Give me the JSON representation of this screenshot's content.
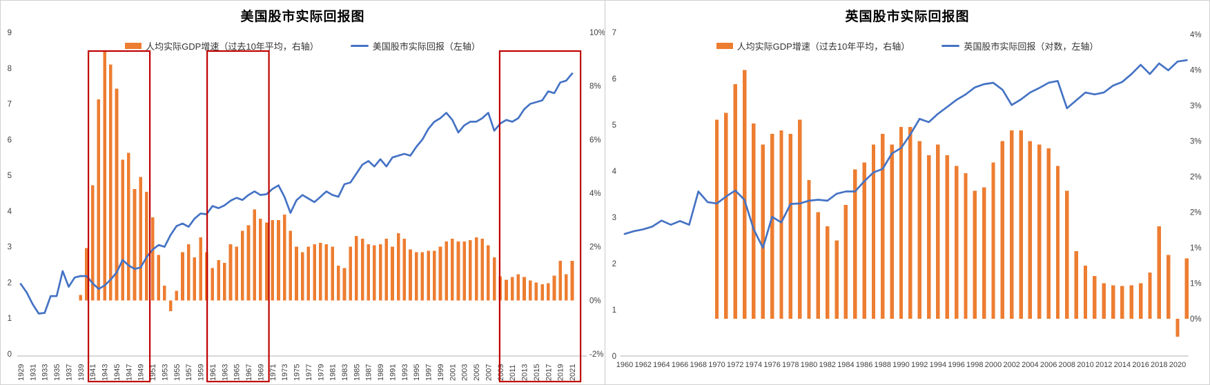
{
  "colors": {
    "bar": "#ED7D31",
    "line": "#4472C4",
    "highlight_box": "#C00000",
    "axis_text": "#404040",
    "axis_line": "#BFBFBF",
    "background": "#FFFFFF"
  },
  "charts": [
    {
      "id": "us",
      "title": "美国股市实际回报图",
      "legend": [
        {
          "series": "bars",
          "label": "人均实际GDP增速（过去10年平均，右轴）"
        },
        {
          "series": "line",
          "label": "美国股市实际回报（左轴）"
        }
      ],
      "chart_data": {
        "type": "bar",
        "subtype": "combo-bar-line",
        "left_axis": {
          "min": 0,
          "max": 9,
          "labels": [
            "0",
            "1",
            "2",
            "3",
            "4",
            "5",
            "6",
            "7",
            "8",
            "9"
          ],
          "series": "line"
        },
        "right_axis": {
          "min": -2,
          "max": 10,
          "labels": [
            "-2%",
            "0%",
            "2%",
            "4%",
            "6%",
            "8%",
            "10%"
          ],
          "values": [
            -2,
            0,
            2,
            4,
            6,
            8,
            10
          ],
          "series": "bars"
        },
        "x_axis": {
          "base_year": 1929,
          "tick_step": 2,
          "rotated_labels": true,
          "tick_labels": [
            "1929",
            "1931",
            "1933",
            "1935",
            "1937",
            "1939",
            "1941",
            "1943",
            "1945",
            "1947",
            "1949",
            "1951",
            "1953",
            "1955",
            "1957",
            "1959",
            "1961",
            "1963",
            "1965",
            "1967",
            "1969",
            "1971",
            "1973",
            "1975",
            "1977",
            "1979",
            "1981",
            "1983",
            "1985",
            "1987",
            "1989",
            "1991",
            "1993",
            "1995",
            "1997",
            "1999",
            "2001",
            "2003",
            "2005",
            "2007",
            "2009",
            "2011",
            "2013",
            "2015",
            "2017",
            "2019",
            "2021"
          ]
        },
        "bars": {
          "name": "人均实际GDP增速（过去10年平均，右轴）",
          "unit": "%",
          "start_year": 1939,
          "values": [
            0.2,
            1.95,
            4.3,
            7.5,
            9.3,
            8.8,
            7.9,
            5.25,
            5.5,
            4.15,
            4.6,
            4.05,
            3.1,
            1.7,
            0.55,
            -0.4,
            0.35,
            1.8,
            2.1,
            1.6,
            2.35,
            1.8,
            1.2,
            1.5,
            1.4,
            2.1,
            2.0,
            2.6,
            2.8,
            3.4,
            3.05,
            2.9,
            3.0,
            3.0,
            3.2,
            2.6,
            2.0,
            1.8,
            2.0,
            2.1,
            2.15,
            2.1,
            2.0,
            1.3,
            1.2,
            2.0,
            2.4,
            2.3,
            2.1,
            2.05,
            2.1,
            2.3,
            2.0,
            2.5,
            2.3,
            1.9,
            1.8,
            1.8,
            1.85,
            1.85,
            2.0,
            2.2,
            2.3,
            2.2,
            2.2,
            2.25,
            2.35,
            2.3,
            2.05,
            1.6,
            0.9,
            0.77,
            0.87,
            0.97,
            0.87,
            0.74,
            0.66,
            0.6,
            0.64,
            0.92,
            1.48,
            0.97,
            1.48
          ]
        },
        "line": {
          "name": "美国股市实际回报（左轴）",
          "start_year": 1929,
          "values": [
            1.96,
            1.72,
            1.39,
            1.13,
            1.15,
            1.62,
            1.62,
            2.32,
            1.88,
            2.14,
            2.18,
            2.18,
            1.98,
            1.82,
            1.92,
            2.08,
            2.28,
            2.63,
            2.48,
            2.38,
            2.42,
            2.71,
            2.92,
            3.05,
            3.0,
            3.33,
            3.58,
            3.65,
            3.56,
            3.79,
            3.93,
            3.91,
            4.14,
            4.08,
            4.16,
            4.29,
            4.37,
            4.31,
            4.45,
            4.55,
            4.45,
            4.47,
            4.62,
            4.72,
            4.4,
            3.95,
            4.3,
            4.45,
            4.35,
            4.25,
            4.4,
            4.55,
            4.45,
            4.4,
            4.75,
            4.8,
            5.05,
            5.3,
            5.4,
            5.25,
            5.45,
            5.25,
            5.5,
            5.55,
            5.6,
            5.55,
            5.8,
            6.0,
            6.3,
            6.5,
            6.6,
            6.75,
            6.55,
            6.2,
            6.4,
            6.5,
            6.5,
            6.6,
            6.75,
            6.25,
            6.45,
            6.55,
            6.5,
            6.6,
            6.85,
            7.0,
            7.05,
            7.1,
            7.35,
            7.3,
            7.6,
            7.65,
            7.85
          ]
        },
        "highlight_boxes": [
          {
            "label": "1941-1949",
            "from_year": 1940.3,
            "to_year": 1950.55
          },
          {
            "label": "1961-1969",
            "from_year": 1960.1,
            "to_year": 1970.4
          },
          {
            "label": "2009-2021",
            "from_year": 2008.9,
            "to_year": 2022.4
          }
        ]
      }
    },
    {
      "id": "uk",
      "title": "英国股市实际回报图",
      "legend": [
        {
          "series": "bars",
          "label": "人均实际GDP增速（过去10年平均，右轴）"
        },
        {
          "series": "line",
          "label": "英国股市实际回报（对数，左轴）"
        }
      ],
      "chart_data": {
        "type": "bar",
        "subtype": "combo-bar-line",
        "left_axis": {
          "min": 0,
          "max": 7,
          "labels": [
            "0",
            "1",
            "2",
            "3",
            "4",
            "5",
            "6",
            "7"
          ],
          "series": "line"
        },
        "right_axis": {
          "min": 0,
          "max": 4,
          "labels": [
            "0%",
            "1%",
            "1%",
            "2%",
            "2%",
            "3%",
            "3%",
            "4%",
            "4%"
          ],
          "values": [
            0,
            0.5,
            1,
            1.5,
            2,
            2.5,
            3,
            3.5,
            4
          ],
          "series": "bars"
        },
        "x_axis": {
          "base_year": 1960,
          "tick_step": 2,
          "rotated_labels": false,
          "tick_labels": [
            "1960",
            "1962",
            "1964",
            "1966",
            "1968",
            "1970",
            "1972",
            "1974",
            "1976",
            "1978",
            "1980",
            "1982",
            "1984",
            "1986",
            "1988",
            "1990",
            "1992",
            "1994",
            "1996",
            "1998",
            "2000",
            "2002",
            "2004",
            "2006",
            "2008",
            "2010",
            "2012",
            "2014",
            "2016",
            "2018",
            "2020"
          ]
        },
        "bars": {
          "name": "人均实际GDP增速（过去10年平均，右轴）",
          "unit": "%",
          "start_year": 1970,
          "values": [
            2.8,
            2.9,
            3.3,
            3.5,
            2.75,
            2.45,
            2.6,
            2.65,
            2.6,
            2.8,
            1.95,
            1.5,
            1.3,
            1.1,
            1.6,
            2.1,
            2.2,
            2.45,
            2.6,
            2.45,
            2.7,
            2.7,
            2.5,
            2.3,
            2.45,
            2.3,
            2.15,
            2.05,
            1.8,
            1.85,
            2.2,
            2.5,
            2.65,
            2.65,
            2.5,
            2.45,
            2.4,
            2.15,
            1.8,
            0.95,
            0.75,
            0.6,
            0.5,
            0.47,
            0.46,
            0.47,
            0.5,
            0.65,
            1.3,
            0.9,
            -0.25,
            0.85
          ]
        },
        "line": {
          "name": "英国股市实际回报（对数，左轴）",
          "start_year": 1960,
          "values": [
            2.64,
            2.7,
            2.74,
            2.8,
            2.93,
            2.84,
            2.92,
            2.84,
            3.56,
            3.33,
            3.3,
            3.45,
            3.58,
            3.38,
            2.74,
            2.34,
            3.01,
            2.89,
            3.29,
            3.3,
            3.36,
            3.38,
            3.36,
            3.51,
            3.56,
            3.56,
            3.78,
            3.97,
            4.05,
            4.38,
            4.5,
            4.79,
            5.13,
            5.06,
            5.24,
            5.39,
            5.54,
            5.66,
            5.81,
            5.88,
            5.91,
            5.76,
            5.43,
            5.55,
            5.7,
            5.8,
            5.91,
            5.95,
            5.36,
            5.53,
            5.7,
            5.66,
            5.7,
            5.85,
            5.93,
            6.1,
            6.3,
            6.1,
            6.33,
            6.18,
            6.37,
            6.4
          ]
        },
        "highlight_boxes": []
      }
    }
  ]
}
